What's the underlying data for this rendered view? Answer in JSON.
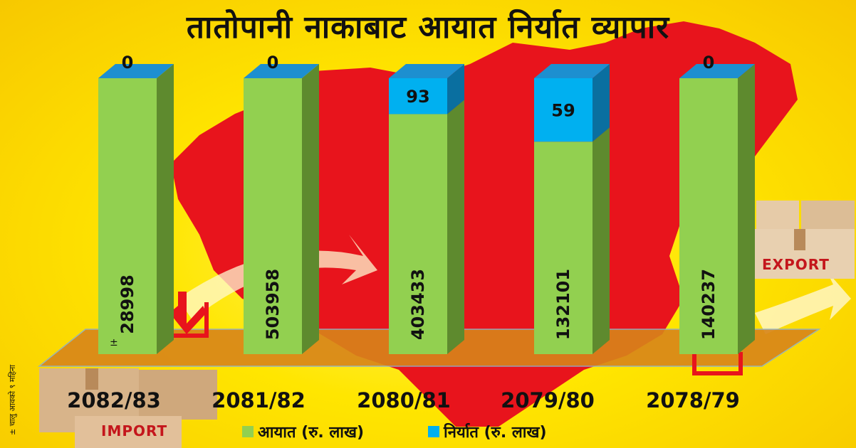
{
  "title": "तातोपानी नाकाबाट आयात निर्यात व्यापार",
  "footnote": "± चालु आवको ९ महिना",
  "decor": {
    "import_label": "IMPORT",
    "export_label": "EXPORT"
  },
  "colors": {
    "import": "#92d050",
    "export": "#00b0f0",
    "map": "#e8141c",
    "background": "#ffe600"
  },
  "legend": [
    {
      "label": "आयात (रु. लाख)",
      "color": "#92d050"
    },
    {
      "label": "निर्यात (रु. लाख)",
      "color": "#00b0f0"
    }
  ],
  "chart_data": {
    "type": "bar",
    "stacked": true,
    "categories": [
      "2082/83",
      "2081/82",
      "2080/81",
      "2079/80",
      "2078/79"
    ],
    "series": [
      {
        "name": "आयात (रु. लाख)",
        "values": [
          28998,
          503958,
          403433,
          132101,
          140237
        ],
        "labels": [
          "28998",
          "503958",
          "403433",
          "132101",
          "140237"
        ],
        "note_marks": [
          "±",
          "",
          "",
          "",
          ""
        ]
      },
      {
        "name": "निर्यात (रु. लाख)",
        "values": [
          0,
          0,
          93,
          59,
          0
        ],
        "labels": [
          "0",
          "0",
          "93",
          "59",
          "0"
        ]
      }
    ],
    "export_display_share": [
      0,
      0,
      0.13,
      0.23,
      0
    ],
    "legend_position": "bottom",
    "grid": false
  }
}
